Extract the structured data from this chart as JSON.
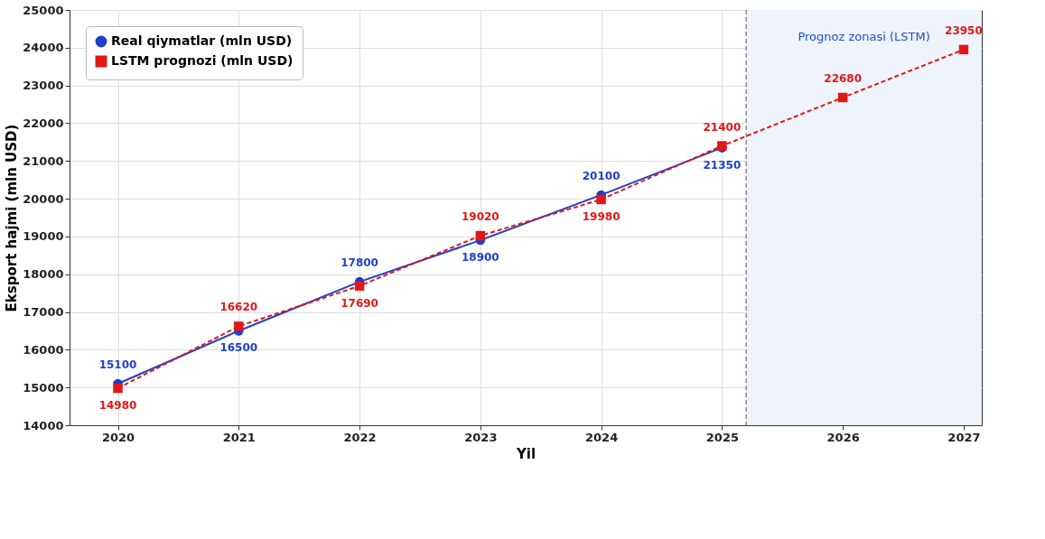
{
  "chart_data": {
    "type": "line",
    "xlabel": "Yil",
    "ylabel": "Eksport hajmi (mln USD)",
    "xlim": [
      2019.6,
      2027.15
    ],
    "xticks": [
      2020,
      2021,
      2022,
      2023,
      2024,
      2025,
      2026,
      2027
    ],
    "ylim": [
      14000,
      25000
    ],
    "yticks": [
      14000,
      15000,
      16000,
      17000,
      18000,
      19000,
      20000,
      21000,
      22000,
      23000,
      24000,
      25000
    ],
    "grid": true,
    "legend": "top left",
    "data_labels": true,
    "series": [
      {
        "name": "Real qiymatlar (mln USD)",
        "color": "#1f3fcc",
        "marker": "circle",
        "line_style": "solid",
        "x": [
          2020,
          2021,
          2022,
          2023,
          2024,
          2025
        ],
        "values": [
          15100,
          16500,
          17800,
          18900,
          20100,
          21350
        ]
      },
      {
        "name": "LSTM prognozi (mln USD)",
        "color": "#e01818",
        "marker": "square",
        "line_style": "dashed",
        "x": [
          2020,
          2021,
          2022,
          2023,
          2024,
          2025,
          2026,
          2027
        ],
        "values": [
          14980,
          16620,
          17690,
          19020,
          19980,
          21400,
          22680,
          23950
        ]
      }
    ],
    "ref_lines": [
      {
        "axis": "x",
        "value": 2025.2,
        "color": "#555555",
        "line_style": "dashed"
      }
    ],
    "bands": [
      {
        "axis": "x",
        "from": 2025.2,
        "to": 2027.15,
        "label": "Prognoz zonasi (LSTM)",
        "color": "#eef3fc"
      }
    ]
  }
}
